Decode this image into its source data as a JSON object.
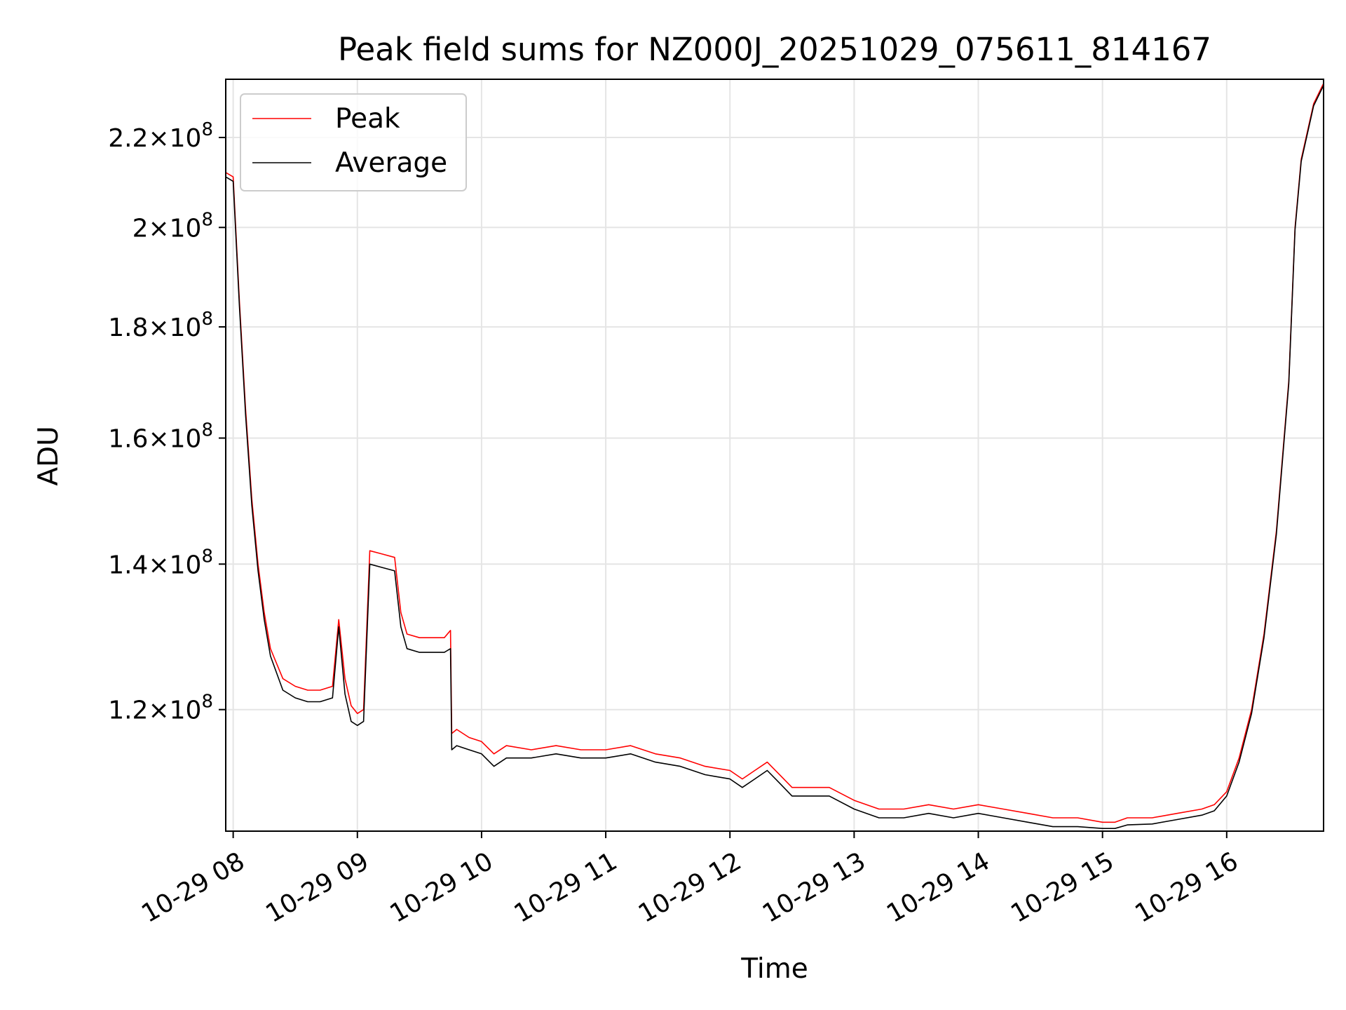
{
  "chart_data": {
    "type": "line",
    "title": "Peak field sums for NZ000J_20251029_075611_814167",
    "xlabel": "Time",
    "ylabel": "ADU",
    "yscale": "log",
    "xlim_hours": [
      7.94,
      16.78
    ],
    "ylim": [
      105500000,
      234000000
    ],
    "grid": true,
    "legend_location": "upper left",
    "x_ticks": [
      {
        "value": 8,
        "label": "10-29 08"
      },
      {
        "value": 9,
        "label": "10-29 09"
      },
      {
        "value": 10,
        "label": "10-29 10"
      },
      {
        "value": 11,
        "label": "10-29 11"
      },
      {
        "value": 12,
        "label": "10-29 12"
      },
      {
        "value": 13,
        "label": "10-29 13"
      },
      {
        "value": 14,
        "label": "10-29 14"
      },
      {
        "value": 15,
        "label": "10-29 15"
      },
      {
        "value": 16,
        "label": "10-29 16"
      }
    ],
    "y_ticks": [
      {
        "value": 120000000,
        "mantissa": "1.2",
        "base": "10",
        "exp": "8"
      },
      {
        "value": 140000000,
        "mantissa": "1.4",
        "base": "10",
        "exp": "8"
      },
      {
        "value": 160000000,
        "mantissa": "1.6",
        "base": "10",
        "exp": "8"
      },
      {
        "value": 180000000,
        "mantissa": "1.8",
        "base": "10",
        "exp": "8"
      },
      {
        "value": 200000000,
        "mantissa": "2",
        "base": "10",
        "exp": "8"
      },
      {
        "value": 220000000,
        "mantissa": "2.2",
        "base": "10",
        "exp": "8"
      }
    ],
    "x_hours": [
      7.94,
      8.0,
      8.05,
      8.1,
      8.15,
      8.2,
      8.25,
      8.3,
      8.4,
      8.5,
      8.6,
      8.7,
      8.8,
      8.85,
      8.9,
      8.95,
      9.0,
      9.05,
      9.1,
      9.2,
      9.3,
      9.35,
      9.4,
      9.5,
      9.6,
      9.7,
      9.75,
      9.76,
      9.8,
      9.9,
      10.0,
      10.1,
      10.2,
      10.4,
      10.6,
      10.8,
      11.0,
      11.2,
      11.4,
      11.6,
      11.8,
      12.0,
      12.1,
      12.2,
      12.3,
      12.4,
      12.5,
      12.6,
      12.8,
      13.0,
      13.2,
      13.4,
      13.6,
      13.8,
      14.0,
      14.2,
      14.4,
      14.6,
      14.8,
      15.0,
      15.1,
      15.2,
      15.4,
      15.6,
      15.8,
      15.9,
      16.0,
      16.1,
      16.2,
      16.3,
      16.4,
      16.5,
      16.55,
      16.6,
      16.7,
      16.78
    ],
    "series": [
      {
        "name": "Peak",
        "color": "#ff0000",
        "values": [
          212000000,
          211000000,
          185000000,
          165000000,
          150000000,
          140000000,
          133000000,
          128000000,
          124000000,
          123000000,
          122500000,
          122500000,
          123000000,
          132000000,
          124000000,
          120500000,
          119500000,
          120000000,
          142000000,
          141500000,
          141000000,
          133000000,
          130000000,
          129500000,
          129500000,
          129500000,
          130500000,
          117000000,
          117500000,
          116500000,
          116000000,
          114500000,
          115500000,
          115000000,
          115500000,
          115000000,
          115000000,
          115500000,
          114500000,
          114000000,
          113000000,
          112500000,
          111500000,
          112500000,
          113500000,
          112000000,
          110500000,
          110500000,
          110500000,
          109000000,
          108000000,
          108000000,
          108500000,
          108000000,
          108500000,
          108000000,
          107500000,
          107000000,
          107000000,
          106500000,
          106500000,
          107000000,
          107000000,
          107500000,
          108000000,
          108500000,
          110000000,
          114000000,
          120000000,
          130000000,
          145000000,
          170000000,
          200000000,
          215000000,
          228000000,
          233000000
        ]
      },
      {
        "name": "Average",
        "color": "#000000",
        "values": [
          211000000,
          210000000,
          184000000,
          164000000,
          149000000,
          139000000,
          132000000,
          127000000,
          122500000,
          121500000,
          121000000,
          121000000,
          121500000,
          131000000,
          122000000,
          118500000,
          118000000,
          118500000,
          140000000,
          139500000,
          139000000,
          131000000,
          128000000,
          127500000,
          127500000,
          127500000,
          128000000,
          115000000,
          115500000,
          115000000,
          114500000,
          113000000,
          114000000,
          114000000,
          114500000,
          114000000,
          114000000,
          114500000,
          113500000,
          113000000,
          112000000,
          111500000,
          110500000,
          111500000,
          112500000,
          111000000,
          109500000,
          109500000,
          109500000,
          108000000,
          107000000,
          107000000,
          107500000,
          107000000,
          107500000,
          107000000,
          106500000,
          106000000,
          106000000,
          105800000,
          105800000,
          106200000,
          106300000,
          106800000,
          107300000,
          107800000,
          109500000,
          113500000,
          119500000,
          129500000,
          144500000,
          169500000,
          199500000,
          214500000,
          227500000,
          232500000
        ]
      }
    ]
  }
}
